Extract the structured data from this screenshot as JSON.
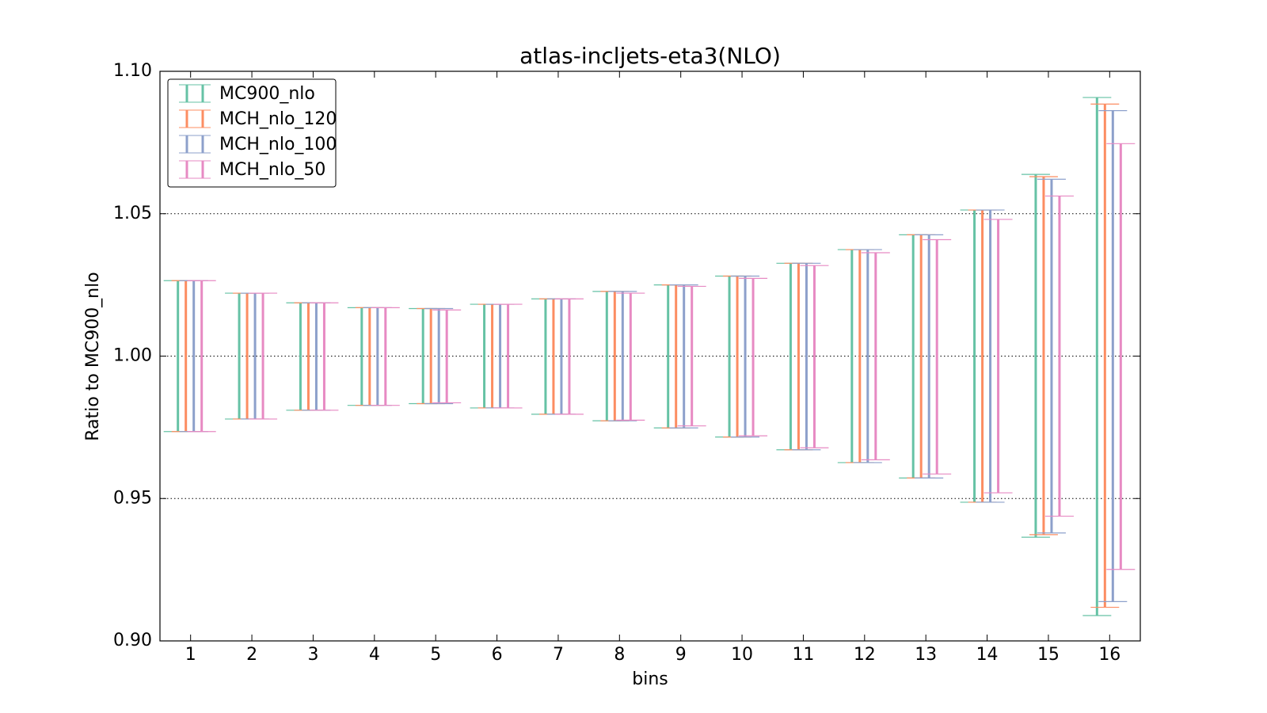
{
  "chart_data": {
    "type": "errorbar",
    "title": "atlas-incljets-eta3(NLO)",
    "x_label": "bins",
    "y_label": "Ratio to MC900_nlo",
    "x": [
      1,
      2,
      3,
      4,
      5,
      6,
      7,
      8,
      9,
      10,
      11,
      12,
      13,
      14,
      15,
      16
    ],
    "xlim": [
      0.5,
      16.5
    ],
    "xticks": [
      1,
      2,
      3,
      4,
      5,
      6,
      7,
      8,
      9,
      10,
      11,
      12,
      13,
      14,
      15,
      16
    ],
    "ylim": [
      0.9,
      1.1
    ],
    "yticks": [
      {
        "value": 0.9,
        "label": "0.90"
      },
      {
        "value": 0.95,
        "label": "0.95"
      },
      {
        "value": 1.0,
        "label": "1.00"
      },
      {
        "value": 1.05,
        "label": "1.05"
      },
      {
        "value": 1.1,
        "label": "1.10"
      }
    ],
    "grid": true,
    "legend": "upper left",
    "series": [
      {
        "name": "MC900_nlo",
        "color": "#66c2a5",
        "low": [
          0.9735,
          0.9779,
          0.981,
          0.9827,
          0.9833,
          0.9818,
          0.9796,
          0.9773,
          0.9748,
          0.9716,
          0.9671,
          0.9626,
          0.9572,
          0.9487,
          0.9364,
          0.9089
        ],
        "high": [
          1.0265,
          1.0221,
          1.0187,
          1.017,
          1.0167,
          1.0182,
          1.0201,
          1.0227,
          1.025,
          1.0281,
          1.0326,
          1.0374,
          1.0426,
          1.0513,
          1.0638,
          1.0908
        ]
      },
      {
        "name": "MCH_nlo_120",
        "color": "#fc8d62",
        "low": [
          0.9735,
          0.9779,
          0.981,
          0.9827,
          0.9833,
          0.9818,
          0.9796,
          0.9773,
          0.9748,
          0.9716,
          0.9671,
          0.9626,
          0.9572,
          0.9487,
          0.9373,
          0.9118
        ],
        "high": [
          1.0265,
          1.0221,
          1.0187,
          1.017,
          1.0167,
          1.0182,
          1.0201,
          1.0227,
          1.025,
          1.0281,
          1.0326,
          1.0374,
          1.0426,
          1.0513,
          1.063,
          1.0885
        ]
      },
      {
        "name": "MCH_nlo_100",
        "color": "#8da0cb",
        "low": [
          0.9735,
          0.9779,
          0.981,
          0.9827,
          0.9833,
          0.9818,
          0.9796,
          0.9773,
          0.9748,
          0.9716,
          0.9671,
          0.9626,
          0.9572,
          0.9487,
          0.9379,
          0.9138
        ],
        "high": [
          1.0265,
          1.0221,
          1.0187,
          1.017,
          1.0167,
          1.0182,
          1.0201,
          1.0227,
          1.025,
          1.0281,
          1.0326,
          1.0374,
          1.0426,
          1.0513,
          1.0621,
          1.0862
        ]
      },
      {
        "name": "MCH_nlo_50",
        "color": "#e78ac3",
        "low": [
          0.9735,
          0.9779,
          0.981,
          0.9827,
          0.9836,
          0.9818,
          0.9796,
          0.9775,
          0.9755,
          0.972,
          0.9678,
          0.9636,
          0.9586,
          0.952,
          0.9438,
          0.9251
        ],
        "high": [
          1.0265,
          1.0221,
          1.0187,
          1.017,
          1.0162,
          1.0182,
          1.0201,
          1.0221,
          1.0245,
          1.0273,
          1.0318,
          1.0363,
          1.0409,
          1.048,
          1.0562,
          1.0746
        ]
      }
    ]
  }
}
